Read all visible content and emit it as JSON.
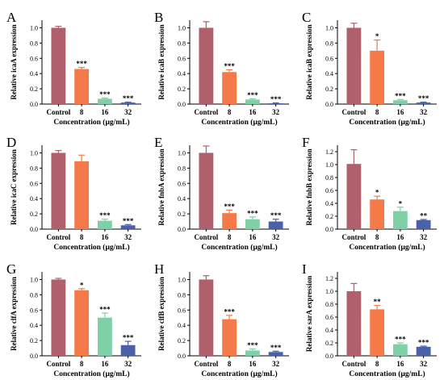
{
  "colors": [
    "#b05f6d",
    "#f47a4a",
    "#7fd0a7",
    "#4a60a8"
  ],
  "chart_data": [
    {
      "panel": "A",
      "type": "bar",
      "categories": [
        "Control",
        "8",
        "16",
        "32"
      ],
      "values": [
        1.0,
        0.46,
        0.07,
        0.02
      ],
      "errors": [
        0.02,
        0.02,
        0.01,
        0.005
      ],
      "significance": [
        "",
        "***",
        "***",
        "***"
      ],
      "ylabel": "Relative icaA expression",
      "xlabel": "Concentration (μg/mL)",
      "ylim": [
        0,
        1.1
      ],
      "yticks": [
        "0.0",
        "0.2",
        "0.4",
        "0.6",
        "0.8",
        "1.0"
      ]
    },
    {
      "panel": "B",
      "type": "bar",
      "categories": [
        "Control",
        "8",
        "16",
        "32"
      ],
      "values": [
        1.0,
        0.42,
        0.06,
        0.01
      ],
      "errors": [
        0.08,
        0.03,
        0.01,
        0.005
      ],
      "significance": [
        "",
        "***",
        "***",
        "***"
      ],
      "ylabel": "Relative icaB expression",
      "xlabel": "Concentration (μg/mL)",
      "ylim": [
        0,
        1.1
      ],
      "yticks": [
        "0.0",
        "0.2",
        "0.4",
        "0.6",
        "0.8",
        "1.0"
      ]
    },
    {
      "panel": "C",
      "type": "bar",
      "categories": [
        "Control",
        "8",
        "16",
        "32"
      ],
      "values": [
        1.0,
        0.7,
        0.05,
        0.02
      ],
      "errors": [
        0.06,
        0.14,
        0.01,
        0.005
      ],
      "significance": [
        "",
        "*",
        "***",
        "***"
      ],
      "ylabel": "Relative icaB expression",
      "xlabel": "Concentration (μg/mL)",
      "ylim": [
        0,
        1.1
      ],
      "yticks": [
        "0.0",
        "0.2",
        "0.4",
        "0.6",
        "0.8",
        "1.0"
      ]
    },
    {
      "panel": "D",
      "type": "bar",
      "categories": [
        "Control",
        "8",
        "16",
        "32"
      ],
      "values": [
        1.0,
        0.89,
        0.11,
        0.05
      ],
      "errors": [
        0.03,
        0.08,
        0.02,
        0.01
      ],
      "significance": [
        "",
        "",
        "***",
        "***"
      ],
      "ylabel": "Relative icaC expression",
      "xlabel": "Concentration (μg/mL)",
      "ylim": [
        0,
        1.1
      ],
      "yticks": [
        "0.0",
        "0.2",
        "0.4",
        "0.6",
        "0.8",
        "1.0"
      ]
    },
    {
      "panel": "E",
      "type": "bar",
      "categories": [
        "Control",
        "8",
        "16",
        "32"
      ],
      "values": [
        1.0,
        0.21,
        0.13,
        0.1
      ],
      "errors": [
        0.09,
        0.04,
        0.03,
        0.03
      ],
      "significance": [
        "",
        "***",
        "***",
        "***"
      ],
      "ylabel": "Relative fnbA expression",
      "xlabel": "Concentration (μg/mL)",
      "ylim": [
        0,
        1.1
      ],
      "yticks": [
        "0.0",
        "0.2",
        "0.4",
        "0.6",
        "0.8",
        "1.0"
      ]
    },
    {
      "panel": "F",
      "type": "bar",
      "categories": [
        "Control",
        "8",
        "16",
        "32"
      ],
      "values": [
        1.01,
        0.46,
        0.28,
        0.14
      ],
      "errors": [
        0.22,
        0.05,
        0.06,
        0.01
      ],
      "significance": [
        "",
        "*",
        "*",
        "**"
      ],
      "ylabel": "Relative fnbB expression",
      "xlabel": "Concentration (μg/mL)",
      "ylim": [
        0,
        1.3
      ],
      "yticks": [
        "0.0",
        "0.2",
        "0.4",
        "0.6",
        "0.8",
        "1.0",
        "1.2"
      ]
    },
    {
      "panel": "G",
      "type": "bar",
      "categories": [
        "Control",
        "8",
        "16",
        "32"
      ],
      "values": [
        1.0,
        0.86,
        0.5,
        0.14
      ],
      "errors": [
        0.015,
        0.02,
        0.06,
        0.05
      ],
      "significance": [
        "",
        "*",
        "***",
        "***"
      ],
      "ylabel": "Relative clfA expression",
      "xlabel": "Concentration (μg/mL)",
      "ylim": [
        0,
        1.1
      ],
      "yticks": [
        "0.0",
        "0.2",
        "0.4",
        "0.6",
        "0.8",
        "1.0"
      ]
    },
    {
      "panel": "H",
      "type": "bar",
      "categories": [
        "Control",
        "8",
        "16",
        "32"
      ],
      "values": [
        1.0,
        0.48,
        0.07,
        0.05
      ],
      "errors": [
        0.05,
        0.05,
        0.02,
        0.01
      ],
      "significance": [
        "",
        "***",
        "***",
        "***"
      ],
      "ylabel": "Relative clfB expression",
      "xlabel": "Concentration (μg/mL)",
      "ylim": [
        0,
        1.1
      ],
      "yticks": [
        "0.0",
        "0.2",
        "0.4",
        "0.6",
        "0.8",
        "1.0"
      ]
    },
    {
      "panel": "I",
      "type": "bar",
      "categories": [
        "Control",
        "8",
        "16",
        "32"
      ],
      "values": [
        1.0,
        0.72,
        0.18,
        0.14
      ],
      "errors": [
        0.12,
        0.06,
        0.02,
        0.01
      ],
      "significance": [
        "",
        "**",
        "***",
        "***"
      ],
      "ylabel": "Relative sarA expression",
      "xlabel": "Concentration (μg/mL)",
      "ylim": [
        0,
        1.3
      ],
      "yticks": [
        "0.0",
        "0.2",
        "0.4",
        "0.6",
        "0.8",
        "1.0",
        "1.2"
      ]
    }
  ]
}
